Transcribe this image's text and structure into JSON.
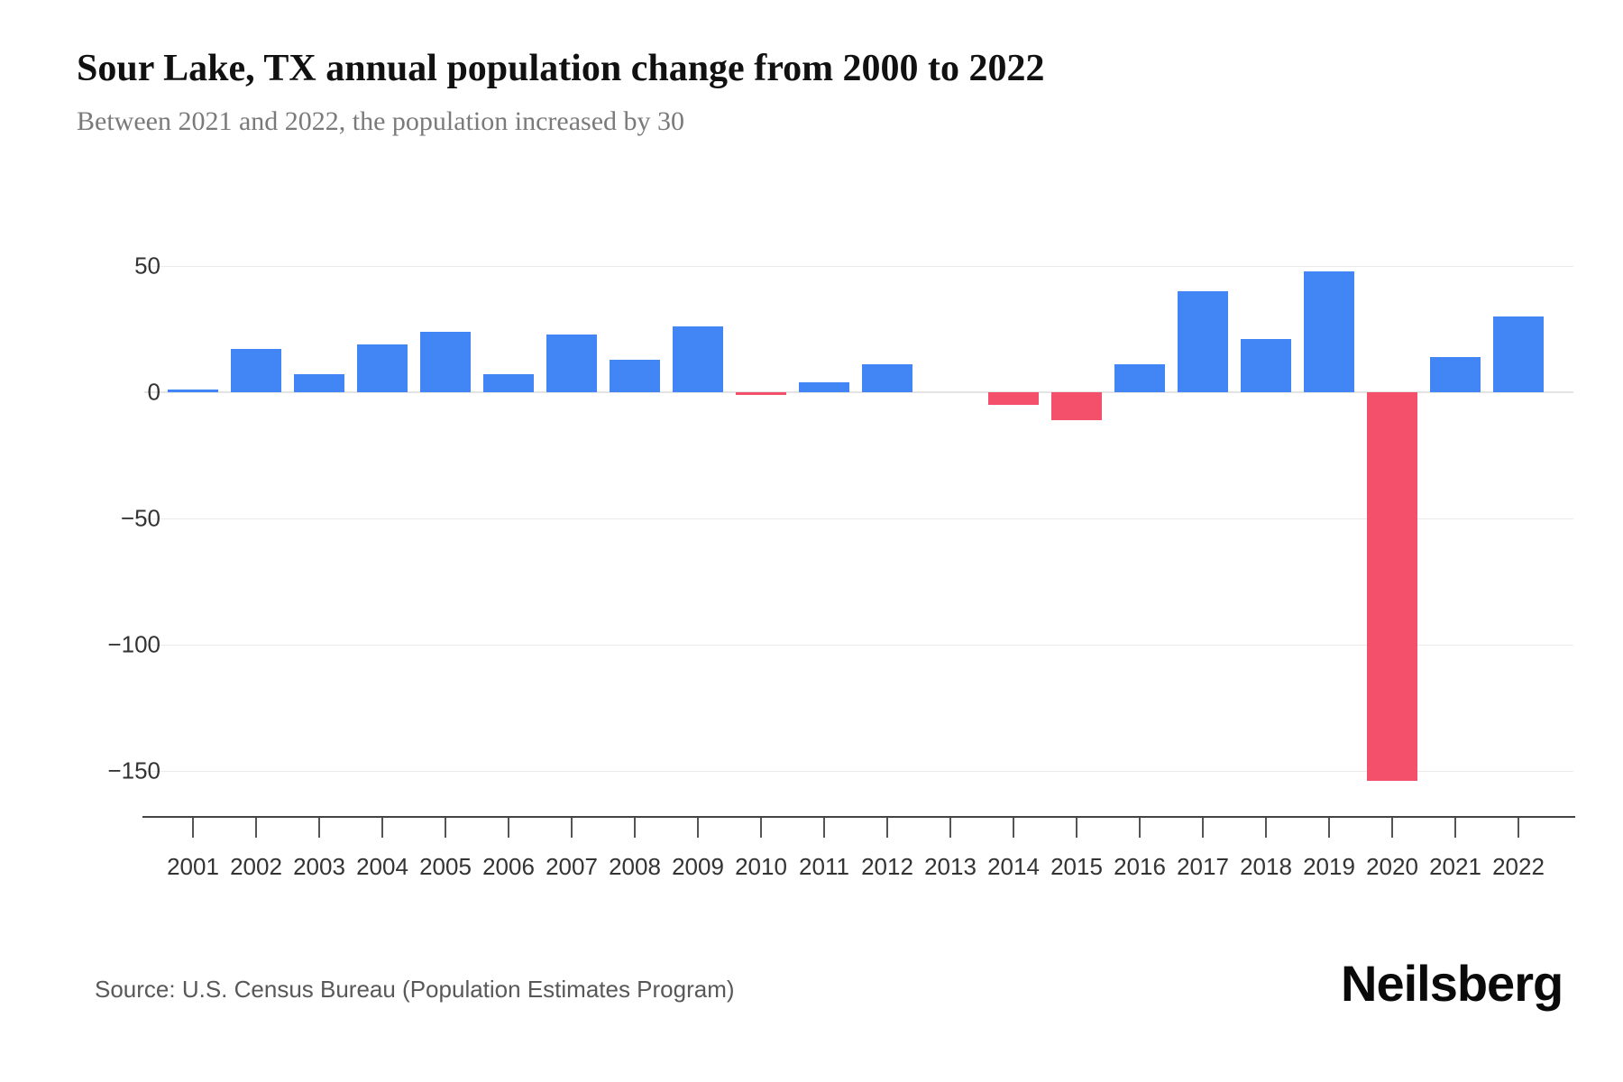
{
  "title": "Sour Lake, TX annual population change from 2000 to 2022",
  "subtitle": "Between 2021 and 2022, the population increased by 30",
  "source": "Source: U.S. Census Bureau (Population Estimates Program)",
  "brand": "Neilsberg",
  "colors": {
    "positive_bar": "#4285f4",
    "negative_bar": "#f4506c",
    "gridline": "#ebebeb",
    "zero_line": "#e4e4e4",
    "axis_line": "#444444",
    "tick_label": "#333333",
    "title_text": "#111111",
    "subtitle_text": "#7a7a7a",
    "source_text": "#585858"
  },
  "chart_data": {
    "type": "bar",
    "title": "Sour Lake, TX annual population change from 2000 to 2022",
    "subtitle": "Between 2021 and 2022, the population increased by 30",
    "xlabel": "",
    "ylabel": "",
    "categories": [
      "2001",
      "2002",
      "2003",
      "2004",
      "2005",
      "2006",
      "2007",
      "2008",
      "2009",
      "2010",
      "2011",
      "2012",
      "2013",
      "2014",
      "2015",
      "2016",
      "2017",
      "2018",
      "2019",
      "2020",
      "2021",
      "2022"
    ],
    "values": [
      1,
      17,
      7,
      19,
      24,
      7,
      23,
      13,
      26,
      -1,
      4,
      11,
      0,
      -5,
      -11,
      11,
      40,
      21,
      48,
      -154,
      14,
      30
    ],
    "bar_color_rule": "blue for increase (>=0), pink-red for decrease (<0)",
    "ytick_values": [
      50,
      0,
      -50,
      -100,
      -150
    ],
    "ytick_labels": [
      "50",
      "0",
      "−50",
      "−100",
      "−150"
    ],
    "ylim": [
      -168,
      70
    ],
    "grid": "horizontal-only",
    "legend": "none"
  }
}
